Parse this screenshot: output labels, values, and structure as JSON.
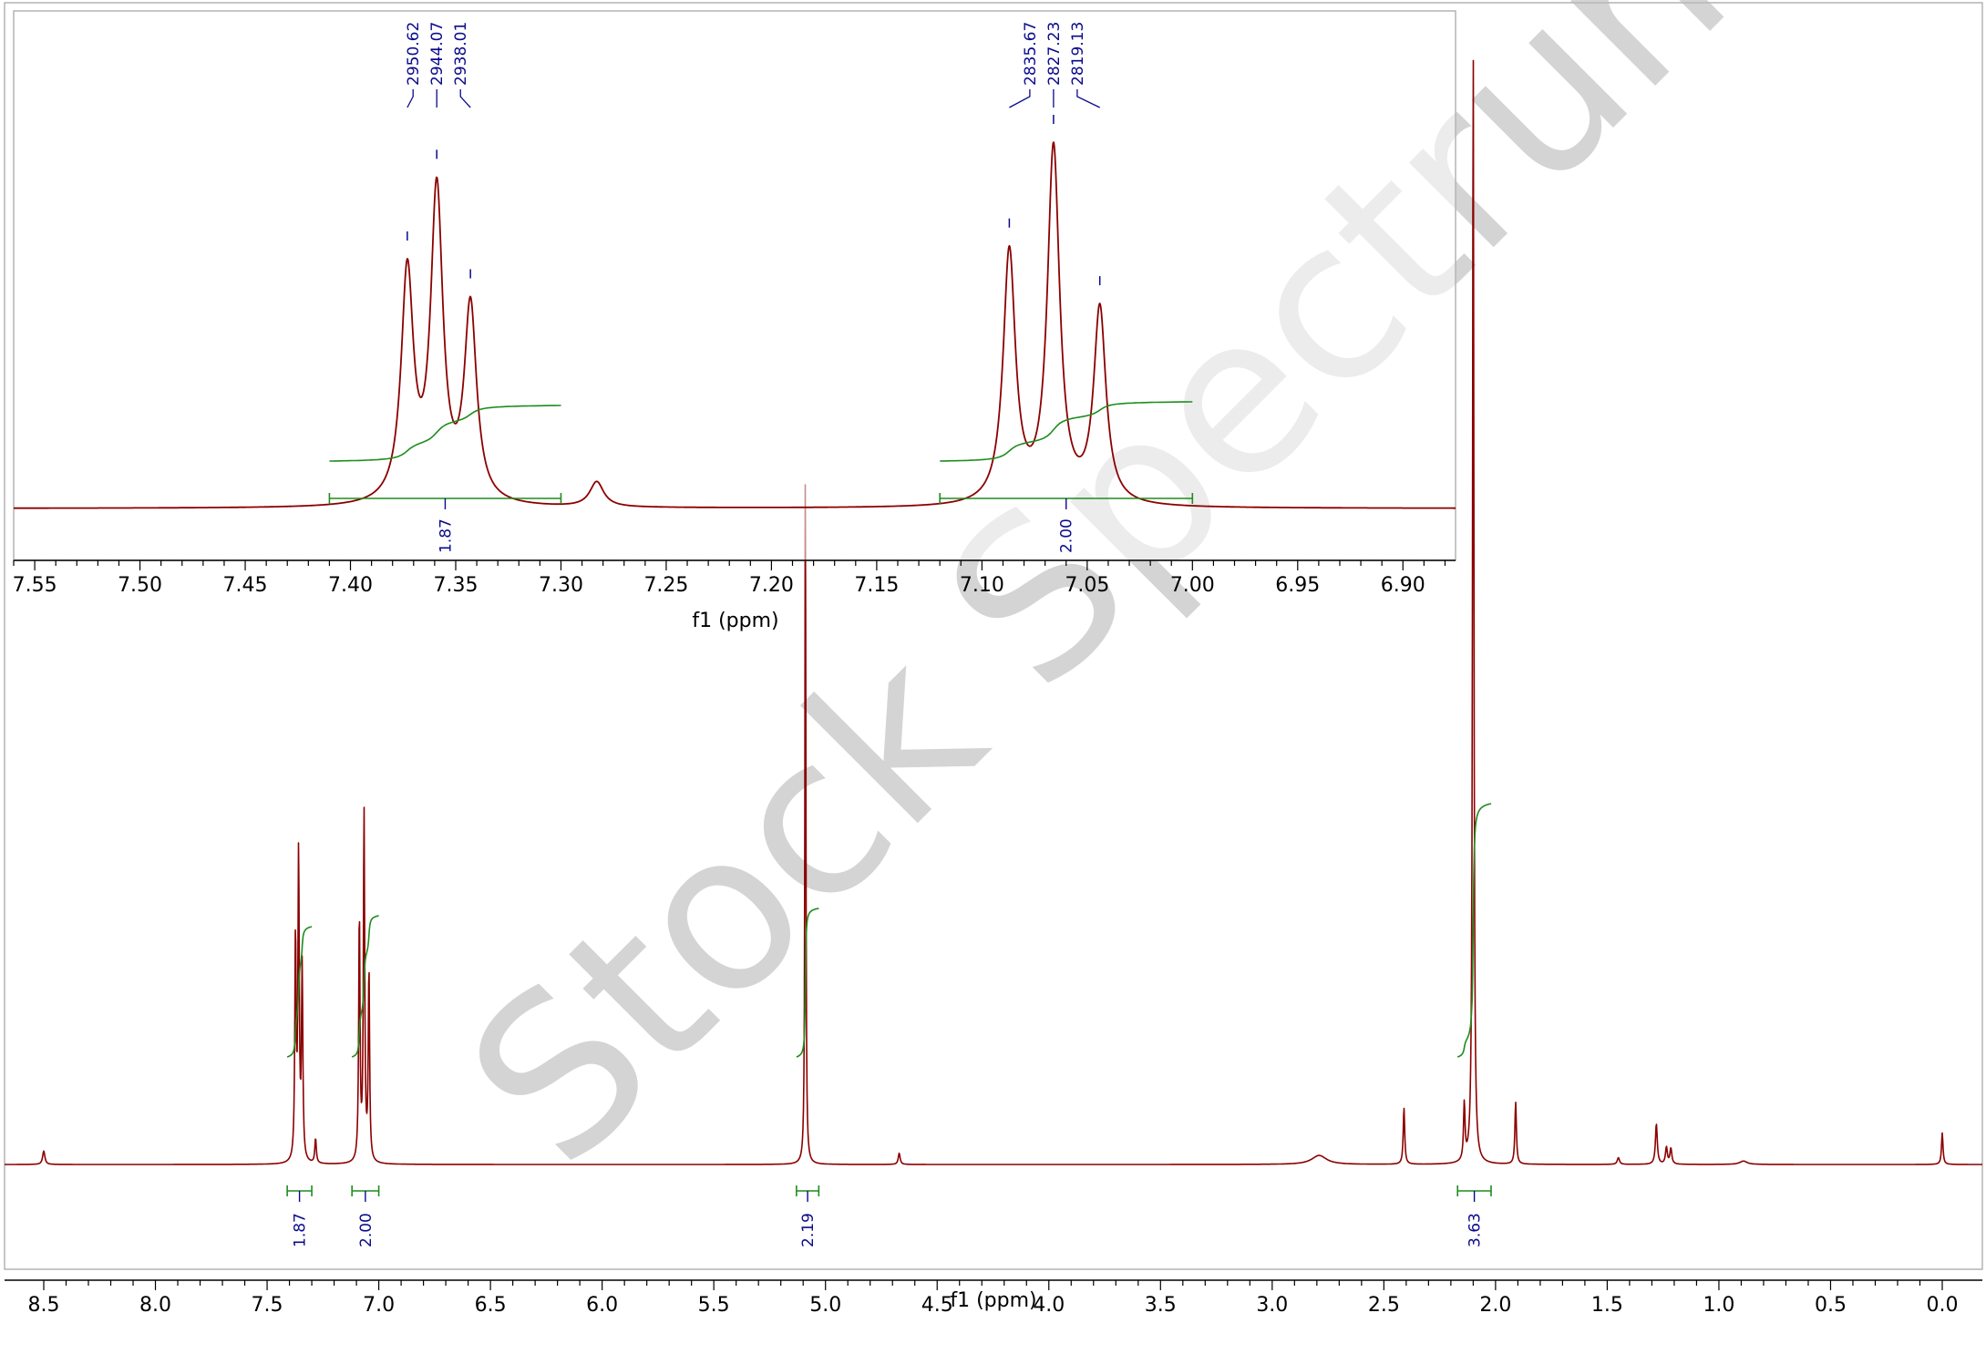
{
  "watermark": "Stock Spectrum",
  "colors": {
    "spectrum": "#8b0000",
    "integral": "#1e8c1e",
    "labels": "#0a0a8c",
    "frame": "#b4b4b4",
    "axis": "#000000"
  },
  "chart_data": [
    {
      "type": "line",
      "title": "",
      "xlabel": "f1 (ppm)",
      "ylabel": "",
      "xlim": [
        8.5,
        0.0
      ],
      "x_ticks": [
        "8.5",
        "8.0",
        "7.5",
        "7.0",
        "6.5",
        "6.0",
        "5.5",
        "5.0",
        "4.5",
        "4.0",
        "3.5",
        "3.0",
        "2.5",
        "2.0",
        "1.5",
        "1.0",
        "0.5",
        "0.0"
      ],
      "peaks": [
        {
          "ppm": 8.5,
          "height": 0.012,
          "width": 0.006
        },
        {
          "ppm": 7.373,
          "height": 0.2,
          "width": 0.0035
        },
        {
          "ppm": 7.359,
          "height": 0.27,
          "width": 0.0035
        },
        {
          "ppm": 7.343,
          "height": 0.17,
          "width": 0.0035
        },
        {
          "ppm": 7.283,
          "height": 0.022,
          "width": 0.004
        },
        {
          "ppm": 7.087,
          "height": 0.22,
          "width": 0.0035
        },
        {
          "ppm": 7.066,
          "height": 0.31,
          "width": 0.0035
        },
        {
          "ppm": 7.044,
          "height": 0.17,
          "width": 0.0035
        },
        {
          "ppm": 5.09,
          "height": 0.64,
          "width": 0.0025
        },
        {
          "ppm": 4.67,
          "height": 0.01,
          "width": 0.005
        },
        {
          "ppm": 2.79,
          "height": 0.008,
          "width": 0.04
        },
        {
          "ppm": 2.41,
          "height": 0.05,
          "width": 0.004
        },
        {
          "ppm": 2.14,
          "height": 0.05,
          "width": 0.004
        },
        {
          "ppm": 2.1,
          "height": 1.0,
          "width": 0.0035
        },
        {
          "ppm": 1.91,
          "height": 0.055,
          "width": 0.004
        },
        {
          "ppm": 1.45,
          "height": 0.006,
          "width": 0.006
        },
        {
          "ppm": 1.28,
          "height": 0.036,
          "width": 0.005
        },
        {
          "ppm": 1.235,
          "height": 0.015,
          "width": 0.005
        },
        {
          "ppm": 1.215,
          "height": 0.014,
          "width": 0.005
        },
        {
          "ppm": 0.89,
          "height": 0.003,
          "width": 0.02
        },
        {
          "ppm": 0.0,
          "height": 0.028,
          "width": 0.004
        }
      ],
      "integrals": [
        {
          "from": 7.41,
          "to": 7.3,
          "value": "1.87"
        },
        {
          "from": 7.12,
          "to": 7.0,
          "value": "2.00"
        },
        {
          "from": 5.13,
          "to": 5.03,
          "value": "2.19"
        },
        {
          "from": 2.17,
          "to": 2.02,
          "value": "3.63"
        }
      ]
    },
    {
      "type": "line",
      "title": "",
      "xlabel": "f1 (ppm)",
      "ylabel": "",
      "xlim": [
        7.56,
        6.875
      ],
      "x_ticks": [
        "7.55",
        "7.50",
        "7.45",
        "7.40",
        "7.35",
        "7.30",
        "7.25",
        "7.20",
        "7.15",
        "7.10",
        "7.05",
        "7.00",
        "6.95",
        "6.90"
      ],
      "peak_labels": [
        {
          "hz": "2950.62",
          "ppm": 7.373
        },
        {
          "hz": "2944.07",
          "ppm": 7.359
        },
        {
          "hz": "2938.01",
          "ppm": 7.343
        },
        {
          "hz": "2835.67",
          "ppm": 7.087
        },
        {
          "hz": "2827.23",
          "ppm": 7.066
        },
        {
          "hz": "2819.13",
          "ppm": 7.044
        }
      ],
      "integrals": [
        {
          "from": 7.41,
          "to": 7.3,
          "value": "1.87"
        },
        {
          "from": 7.12,
          "to": 7.0,
          "value": "2.00"
        }
      ]
    }
  ]
}
